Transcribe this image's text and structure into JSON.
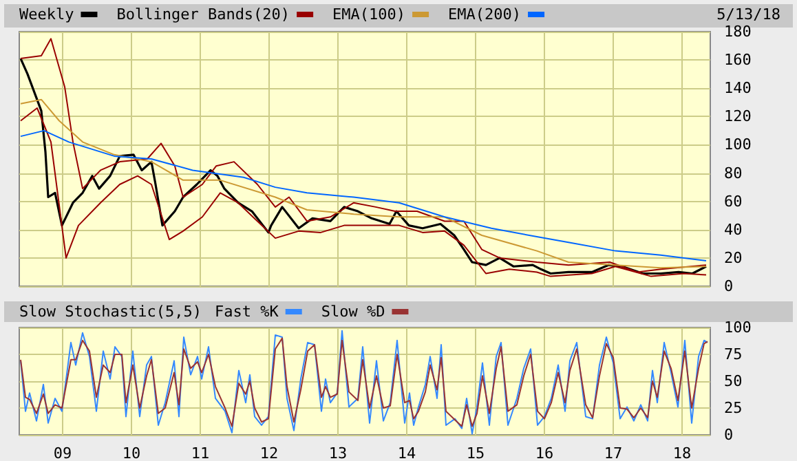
{
  "chart_data": [
    {
      "type": "line",
      "annotations": [
        "5/13/18"
      ],
      "legend": "top",
      "grid": true,
      "marker": "none",
      "line_style": "solid",
      "tick_labels": "y",
      "xlim": [
        2008.37,
        2018.41
      ],
      "xticks": [
        {
          "value": 2009,
          "label": null
        },
        {
          "value": 2010,
          "label": null
        },
        {
          "value": 2011,
          "label": null
        },
        {
          "value": 2012,
          "label": null
        },
        {
          "value": 2013,
          "label": null
        },
        {
          "value": 2014,
          "label": null
        },
        {
          "value": 2015,
          "label": null
        },
        {
          "value": 2016,
          "label": null
        },
        {
          "value": 2017,
          "label": null
        },
        {
          "value": 2018,
          "label": null
        }
      ],
      "ylim": [
        0,
        180
      ],
      "yticks": [
        0,
        20,
        40,
        60,
        80,
        100,
        120,
        140,
        160,
        180
      ],
      "series": [
        {
          "name": "Weekly",
          "color": "#000000",
          "x": [
            2008.39,
            2008.49,
            2008.59,
            2008.69,
            2008.75,
            2008.79,
            2008.89,
            2008.99,
            2009.15,
            2009.29,
            2009.43,
            2009.53,
            2009.69,
            2009.83,
            2010.03,
            2010.15,
            2010.29,
            2010.35,
            2010.45,
            2010.63,
            2010.75,
            2010.95,
            2011.15,
            2011.25,
            2011.35,
            2011.55,
            2011.75,
            2011.99,
            2012.03,
            2012.19,
            2012.43,
            2012.63,
            2012.89,
            2013.09,
            2013.29,
            2013.49,
            2013.75,
            2013.85,
            2014.03,
            2014.23,
            2014.49,
            2014.69,
            2014.83,
            2014.95,
            2015.15,
            2015.35,
            2015.55,
            2015.83,
            2015.95,
            2016.09,
            2016.35,
            2016.69,
            2016.93,
            2017.13,
            2017.43,
            2017.69,
            2017.95,
            2018.15,
            2018.35
          ],
          "values": [
            161,
            150,
            137,
            124,
            95,
            63,
            66,
            43,
            59,
            66,
            78,
            69,
            78,
            92,
            93,
            82,
            88,
            72,
            43,
            53,
            63,
            72,
            82,
            78,
            69,
            59,
            53,
            38,
            43,
            56,
            41,
            48,
            46,
            56,
            53,
            48,
            44,
            53,
            43,
            41,
            44,
            36,
            26,
            17,
            15,
            20,
            14,
            15,
            12,
            9,
            10,
            10,
            15,
            14,
            9,
            9,
            10,
            9,
            14
          ]
        },
        {
          "name": "Bollinger Bands(20)",
          "color": "#990000",
          "x": [
            2008.39,
            2008.69,
            2008.83,
            2009.03,
            2009.15,
            2009.29,
            2009.55,
            2009.83,
            2010.23,
            2010.43,
            2010.63,
            2010.75,
            2011.03,
            2011.23,
            2011.49,
            2011.83,
            2012.09,
            2012.29,
            2012.55,
            2012.89,
            2013.23,
            2013.55,
            2013.83,
            2014.15,
            2014.55,
            2014.83,
            2015.09,
            2015.35,
            2015.89,
            2016.35,
            2016.95,
            2017.35,
            2017.69,
            2018.35
          ],
          "values": [
            161,
            163,
            175,
            141,
            102,
            69,
            82,
            88,
            90,
            101,
            85,
            63,
            72,
            85,
            88,
            72,
            56,
            63,
            46,
            49,
            59,
            56,
            53,
            53,
            46,
            46,
            26,
            20,
            17,
            15,
            17,
            10,
            12,
            15
          ]
        },
        {
          "color": "#990000",
          "x": [
            2008.39,
            2008.63,
            2008.83,
            2009.05,
            2009.23,
            2009.55,
            2009.83,
            2010.09,
            2010.29,
            2010.55,
            2010.75,
            2011.03,
            2011.29,
            2011.55,
            2011.83,
            2012.09,
            2012.43,
            2012.75,
            2013.09,
            2013.43,
            2013.89,
            2014.23,
            2014.55,
            2014.83,
            2015.15,
            2015.49,
            2015.89,
            2016.09,
            2016.69,
            2017.03,
            2017.55,
            2018.03,
            2018.35
          ],
          "values": [
            117,
            126,
            102,
            20,
            43,
            59,
            72,
            78,
            72,
            33,
            39,
            49,
            66,
            59,
            46,
            34,
            39,
            38,
            43,
            43,
            43,
            38,
            39,
            29,
            9,
            12,
            10,
            7,
            9,
            14,
            7,
            9,
            8
          ]
        },
        {
          "name": "EMA(100)",
          "color": "#cc9933",
          "x": [
            2008.39,
            2008.69,
            2008.95,
            2009.29,
            2009.75,
            2010.29,
            2010.75,
            2011.29,
            2012.09,
            2012.55,
            2013.23,
            2013.89,
            2014.55,
            2015.09,
            2015.89,
            2016.35,
            2017.03,
            2017.69,
            2018.35
          ],
          "values": [
            129,
            132,
            117,
            102,
            93,
            88,
            75,
            75,
            63,
            54,
            51,
            49,
            49,
            36,
            25,
            17,
            15,
            13,
            14
          ]
        },
        {
          "name": "EMA(200)",
          "color": "#0066ff",
          "x": [
            2008.39,
            2008.73,
            2009.09,
            2009.75,
            2010.29,
            2010.89,
            2011.63,
            2012.09,
            2012.55,
            2013.23,
            2013.89,
            2014.55,
            2015.23,
            2015.89,
            2016.35,
            2017.03,
            2017.69,
            2018.35
          ],
          "values": [
            106,
            110,
            102,
            92,
            90,
            82,
            77,
            70,
            66,
            63,
            59,
            49,
            41,
            35,
            31,
            25,
            22,
            18
          ]
        }
      ]
    },
    {
      "type": "line",
      "title": "Slow Stochastic(5,5)",
      "legend": "top",
      "grid": true,
      "marker": "none",
      "line_style": "solid",
      "xlim": [
        2008.37,
        2018.41
      ],
      "xticks": [
        {
          "value": 2009,
          "label": "09"
        },
        {
          "value": 2010,
          "label": "10"
        },
        {
          "value": 2011,
          "label": "11"
        },
        {
          "value": 2012,
          "label": "12"
        },
        {
          "value": 2013,
          "label": "13"
        },
        {
          "value": 2014,
          "label": "14"
        },
        {
          "value": 2015,
          "label": "15"
        },
        {
          "value": 2016,
          "label": "16"
        },
        {
          "value": 2017,
          "label": "17"
        },
        {
          "value": 2018,
          "label": "18"
        }
      ],
      "ylim": [
        0,
        100
      ],
      "yticks": [
        0,
        25,
        50,
        75,
        100
      ],
      "x": [
        2008.39,
        2008.46,
        2008.52,
        2008.62,
        2008.72,
        2008.79,
        2008.89,
        2008.99,
        2009.12,
        2009.19,
        2009.29,
        2009.39,
        2009.49,
        2009.59,
        2009.69,
        2009.76,
        2009.86,
        2009.92,
        2010.02,
        2010.12,
        2010.22,
        2010.29,
        2010.39,
        2010.49,
        2010.62,
        2010.69,
        2010.76,
        2010.86,
        2010.96,
        2011.02,
        2011.12,
        2011.22,
        2011.36,
        2011.46,
        2011.56,
        2011.66,
        2011.72,
        2011.79,
        2011.89,
        2011.99,
        2012.09,
        2012.19,
        2012.26,
        2012.36,
        2012.46,
        2012.56,
        2012.66,
        2012.76,
        2012.82,
        2012.89,
        2012.99,
        2013.06,
        2013.16,
        2013.29,
        2013.36,
        2013.46,
        2013.56,
        2013.66,
        2013.76,
        2013.86,
        2013.97,
        2014.04,
        2014.1,
        2014.17,
        2014.27,
        2014.34,
        2014.44,
        2014.5,
        2014.57,
        2014.7,
        2014.8,
        2014.87,
        2014.95,
        2015.02,
        2015.1,
        2015.2,
        2015.3,
        2015.37,
        2015.47,
        2015.6,
        2015.7,
        2015.8,
        2015.9,
        2016.0,
        2016.1,
        2016.2,
        2016.3,
        2016.37,
        2016.47,
        2016.6,
        2016.7,
        2016.8,
        2016.9,
        2017.0,
        2017.1,
        2017.2,
        2017.3,
        2017.4,
        2017.5,
        2017.57,
        2017.64,
        2017.74,
        2017.84,
        2017.94,
        2018.04,
        2018.14,
        2018.24,
        2018.32,
        2018.37
      ],
      "series": [
        {
          "name": "Fast %K",
          "color": "#3388ff",
          "values": [
            69,
            22,
            39,
            13,
            47,
            11,
            34,
            22,
            86,
            65,
            95,
            73,
            22,
            78,
            52,
            82,
            73,
            17,
            78,
            17,
            65,
            73,
            9,
            30,
            69,
            17,
            91,
            56,
            73,
            52,
            82,
            34,
            22,
            2,
            60,
            30,
            56,
            17,
            9,
            17,
            93,
            91,
            34,
            4,
            52,
            86,
            84,
            22,
            52,
            30,
            39,
            97,
            26,
            34,
            82,
            11,
            69,
            13,
            30,
            88,
            11,
            39,
            9,
            26,
            47,
            73,
            34,
            84,
            9,
            15,
            6,
            34,
            1,
            26,
            67,
            9,
            73,
            86,
            9,
            34,
            62,
            80,
            9,
            17,
            34,
            65,
            22,
            69,
            86,
            17,
            15,
            65,
            91,
            67,
            15,
            26,
            13,
            28,
            13,
            60,
            30,
            86,
            58,
            26,
            88,
            11,
            73,
            88,
            86
          ]
        },
        {
          "name": "Slow %D",
          "color": "#993333",
          "values": [
            70,
            35,
            33,
            20,
            38,
            20,
            28,
            25,
            70,
            70,
            88,
            78,
            35,
            65,
            58,
            75,
            75,
            30,
            65,
            25,
            55,
            70,
            20,
            25,
            58,
            28,
            80,
            62,
            68,
            58,
            75,
            45,
            25,
            8,
            48,
            38,
            50,
            25,
            12,
            15,
            80,
            90,
            45,
            12,
            42,
            78,
            84,
            35,
            45,
            35,
            38,
            88,
            40,
            32,
            70,
            25,
            55,
            25,
            27,
            75,
            30,
            32,
            15,
            22,
            40,
            65,
            42,
            72,
            22,
            14,
            8,
            28,
            8,
            20,
            55,
            20,
            62,
            82,
            22,
            28,
            55,
            75,
            22,
            15,
            30,
            58,
            30,
            60,
            80,
            28,
            16,
            55,
            85,
            72,
            25,
            24,
            16,
            25,
            16,
            50,
            35,
            78,
            62,
            32,
            78,
            25,
            62,
            85,
            87
          ]
        }
      ]
    }
  ]
}
